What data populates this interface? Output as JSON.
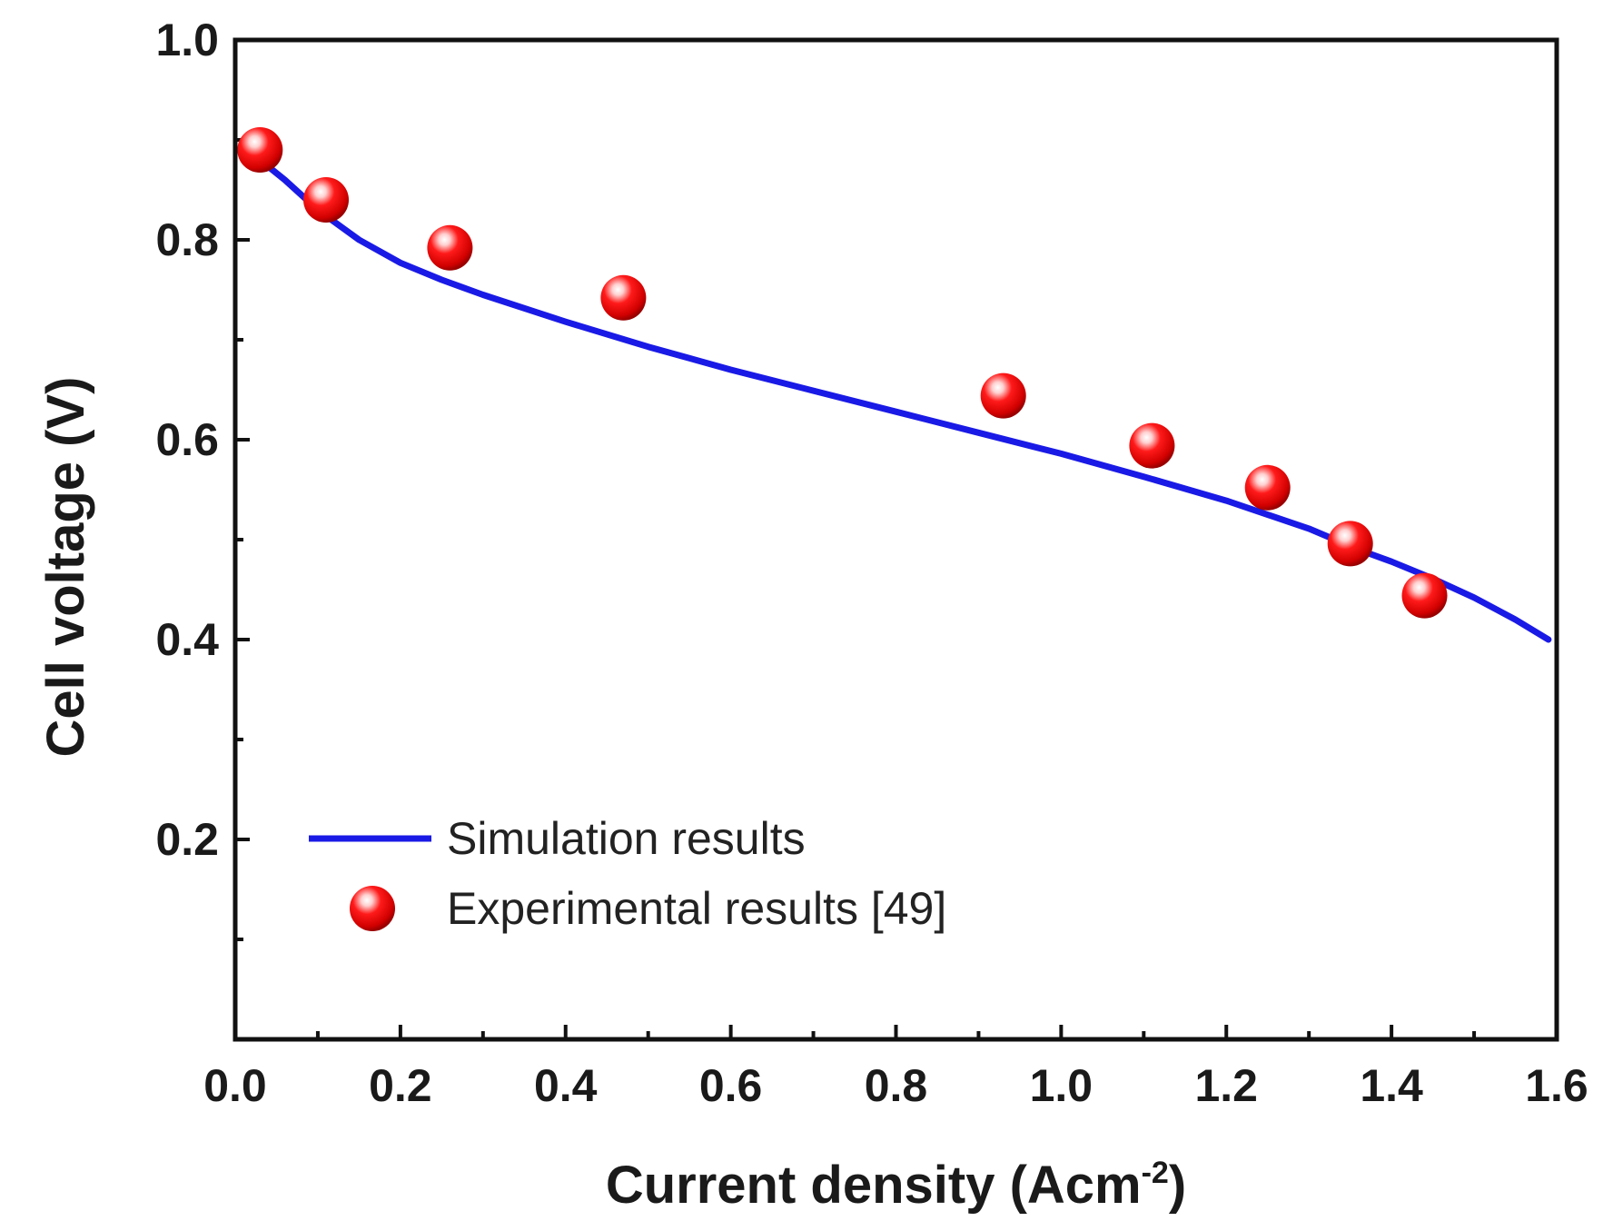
{
  "chart_data": {
    "type": "line",
    "title": "",
    "xlabel": "Current density (Acm",
    "xlabel_sup": "-2",
    "xlabel_close": ")",
    "ylabel": "Cell voltage (V)",
    "xlim": [
      0.0,
      1.6
    ],
    "ylim": [
      0.0,
      1.0
    ],
    "xticks": [
      "0.0",
      "0.2",
      "0.4",
      "0.6",
      "0.8",
      "1.0",
      "1.2",
      "1.4",
      "1.6"
    ],
    "yticks": [
      "0.2",
      "0.4",
      "0.6",
      "0.8",
      "1.0"
    ],
    "legend_position": "bottom-left",
    "series": [
      {
        "name": "Simulation results",
        "kind": "line",
        "color": "#1a1ae6",
        "x": [
          0.03,
          0.06,
          0.1,
          0.15,
          0.2,
          0.25,
          0.3,
          0.4,
          0.5,
          0.6,
          0.7,
          0.8,
          0.9,
          1.0,
          1.1,
          1.2,
          1.3,
          1.36,
          1.4,
          1.45,
          1.5,
          1.55,
          1.59
        ],
        "y": [
          0.88,
          0.86,
          0.83,
          0.8,
          0.777,
          0.76,
          0.745,
          0.718,
          0.693,
          0.67,
          0.649,
          0.628,
          0.607,
          0.586,
          0.563,
          0.539,
          0.511,
          0.49,
          0.478,
          0.461,
          0.442,
          0.42,
          0.4
        ]
      },
      {
        "name": "Experimental results [49]",
        "kind": "scatter",
        "color": "#e60000",
        "x": [
          0.03,
          0.11,
          0.26,
          0.47,
          0.93,
          1.11,
          1.25,
          1.35,
          1.44
        ],
        "y": [
          0.89,
          0.84,
          0.792,
          0.742,
          0.644,
          0.594,
          0.552,
          0.496,
          0.444
        ]
      }
    ]
  }
}
